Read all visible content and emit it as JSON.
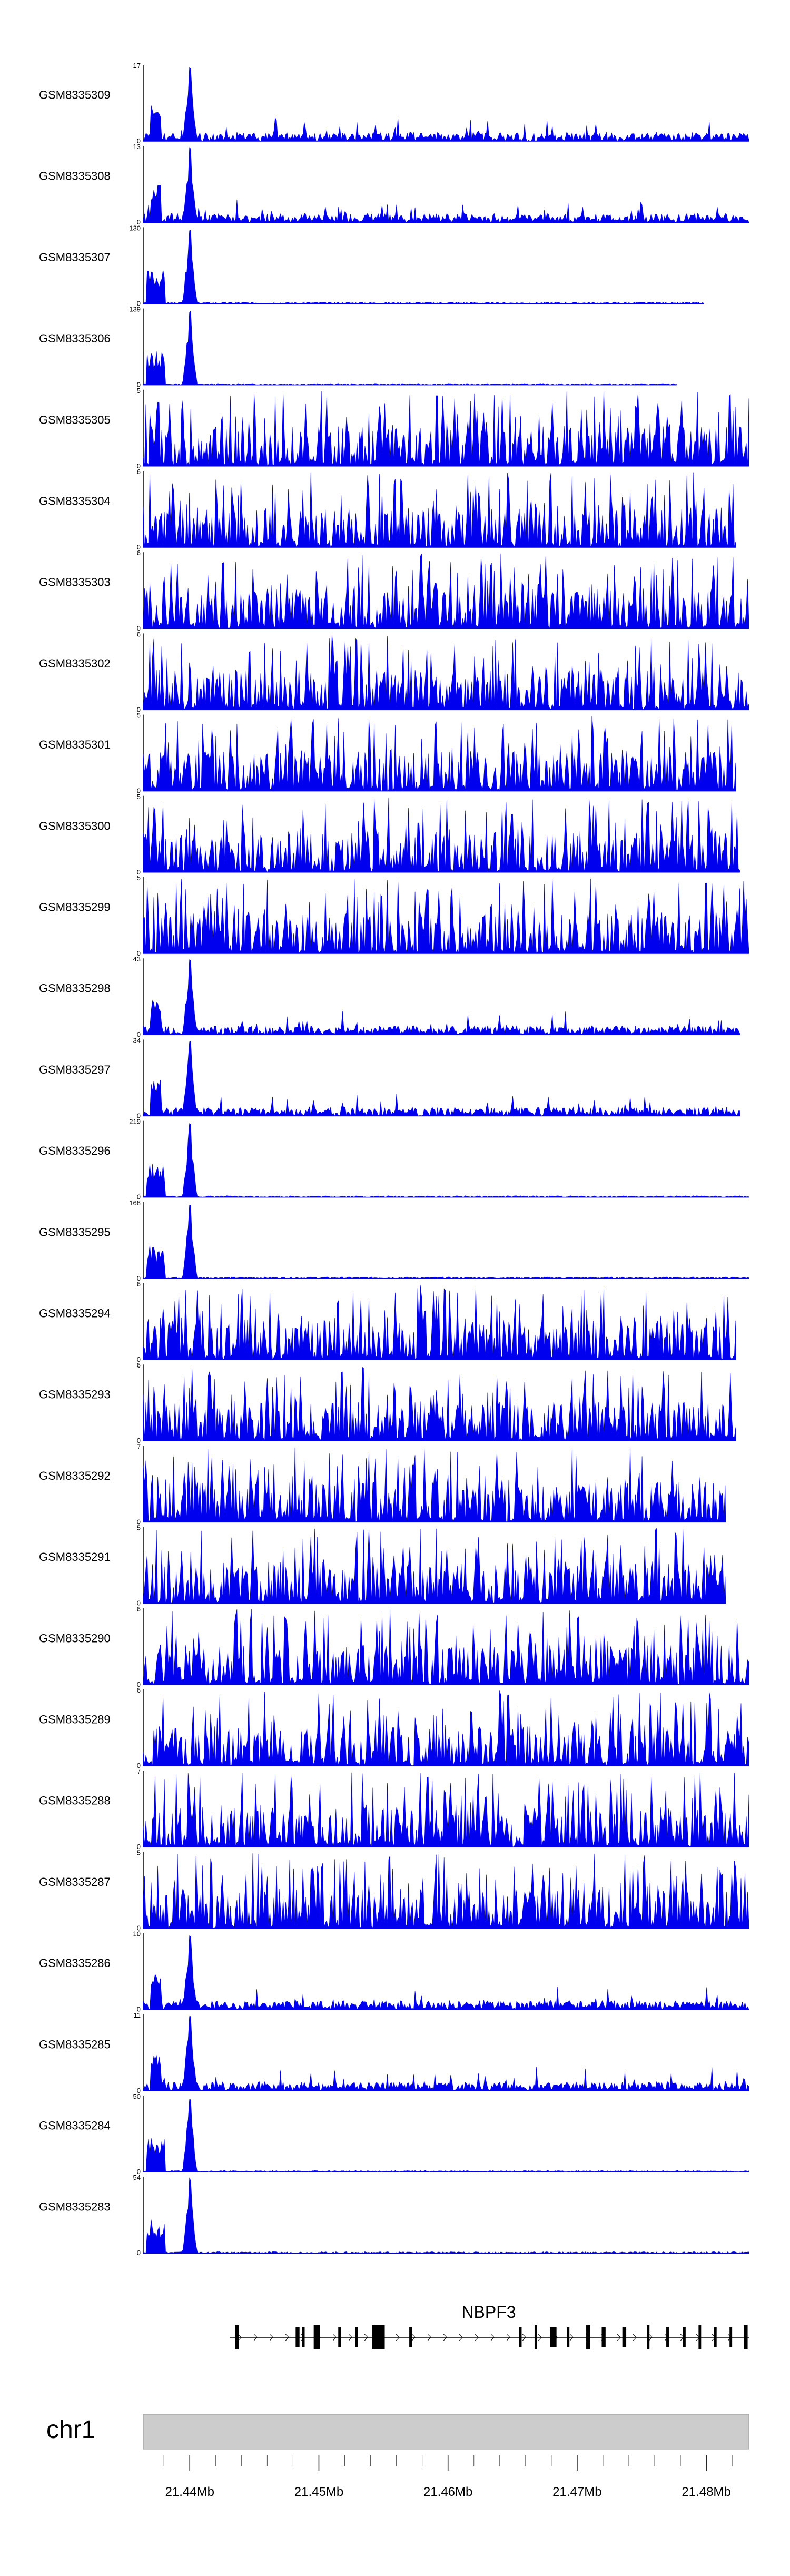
{
  "chart_data": {
    "type": "area",
    "title": "",
    "chromosome": "chr1",
    "xlim_mb": [
      21.4364,
      21.4833
    ],
    "x_axis": {
      "unit": "Mb",
      "tick_labels": [
        "21.44Mb",
        "21.45Mb",
        "21.46Mb",
        "21.47Mb",
        "21.48Mb"
      ],
      "tick_values": [
        21.44,
        21.45,
        21.46,
        21.47,
        21.48
      ],
      "minor_step_mb": 0.002
    },
    "gene": {
      "name": "NBPF3",
      "start_mb": 21.4431,
      "end_mb": 21.4833,
      "strand": "+",
      "exons": [
        [
          21.4435,
          21.4438
        ],
        [
          21.4482,
          21.4485
        ],
        [
          21.4487,
          21.4489
        ],
        [
          21.4496,
          21.4501
        ],
        [
          21.4515,
          21.4517
        ],
        [
          21.4528,
          21.453
        ],
        [
          21.4541,
          21.4551
        ],
        [
          21.457,
          21.4572
        ],
        [
          21.4655,
          21.4657
        ],
        [
          21.4667,
          21.4669
        ],
        [
          21.4679,
          21.4684
        ],
        [
          21.4692,
          21.4694
        ],
        [
          21.4707,
          21.471
        ],
        [
          21.4719,
          21.4722
        ],
        [
          21.4735,
          21.4738
        ],
        [
          21.4754,
          21.4756
        ],
        [
          21.4769,
          21.4771
        ],
        [
          21.4782,
          21.4784
        ],
        [
          21.4794,
          21.4796
        ],
        [
          21.4806,
          21.4808
        ],
        [
          21.4818,
          21.482
        ],
        [
          21.4829,
          21.4832
        ]
      ]
    },
    "series": [
      {
        "name": "GSM8335309",
        "ymax": 17,
        "ylim": [
          0,
          17
        ],
        "pattern": "peaked",
        "peak_mb": 21.44,
        "extent_mb": 21.4833,
        "seed": 9
      },
      {
        "name": "GSM8335308",
        "ymax": 13,
        "ylim": [
          0,
          13
        ],
        "pattern": "peaked",
        "peak_mb": 21.44,
        "extent_mb": 21.4833,
        "seed": 8
      },
      {
        "name": "GSM8335307",
        "ymax": 130,
        "ylim": [
          0,
          130
        ],
        "pattern": "sharp",
        "peak_mb": 21.44,
        "extent_mb": 21.4798,
        "seed": 7
      },
      {
        "name": "GSM8335306",
        "ymax": 139,
        "ylim": [
          0,
          139
        ],
        "pattern": "sharp",
        "peak_mb": 21.44,
        "extent_mb": 21.4777,
        "seed": 6
      },
      {
        "name": "GSM8335305",
        "ymax": 5,
        "ylim": [
          0,
          5
        ],
        "pattern": "broad",
        "peak_mb": null,
        "extent_mb": 21.4833,
        "seed": 5
      },
      {
        "name": "GSM8335304",
        "ymax": 6,
        "ylim": [
          0,
          6
        ],
        "pattern": "broad",
        "peak_mb": null,
        "extent_mb": 21.4823,
        "seed": 4
      },
      {
        "name": "GSM8335303",
        "ymax": 6,
        "ylim": [
          0,
          6
        ],
        "pattern": "broad",
        "peak_mb": null,
        "extent_mb": 21.4833,
        "seed": 3
      },
      {
        "name": "GSM8335302",
        "ymax": 6,
        "ylim": [
          0,
          6
        ],
        "pattern": "broad",
        "peak_mb": null,
        "extent_mb": 21.4833,
        "seed": 2
      },
      {
        "name": "GSM8335301",
        "ymax": 5,
        "ylim": [
          0,
          5
        ],
        "pattern": "broad",
        "peak_mb": null,
        "extent_mb": 21.4823,
        "seed": 1
      },
      {
        "name": "GSM8335300",
        "ymax": 5,
        "ylim": [
          0,
          5
        ],
        "pattern": "broad",
        "peak_mb": null,
        "extent_mb": 21.4826,
        "seed": 30
      },
      {
        "name": "GSM8335299",
        "ymax": 5,
        "ylim": [
          0,
          5
        ],
        "pattern": "broad",
        "peak_mb": null,
        "extent_mb": 21.4833,
        "seed": 29
      },
      {
        "name": "GSM8335298",
        "ymax": 43,
        "ylim": [
          0,
          43
        ],
        "pattern": "peaked",
        "peak_mb": 21.44,
        "extent_mb": 21.4826,
        "seed": 28
      },
      {
        "name": "GSM8335297",
        "ymax": 34,
        "ylim": [
          0,
          34
        ],
        "pattern": "peaked",
        "peak_mb": 21.44,
        "extent_mb": 21.4826,
        "seed": 27
      },
      {
        "name": "GSM8335296",
        "ymax": 219,
        "ylim": [
          0,
          219
        ],
        "pattern": "sharp",
        "peak_mb": 21.44,
        "extent_mb": 21.4833,
        "seed": 26
      },
      {
        "name": "GSM8335295",
        "ymax": 168,
        "ylim": [
          0,
          168
        ],
        "pattern": "sharp",
        "peak_mb": 21.44,
        "extent_mb": 21.4833,
        "seed": 25
      },
      {
        "name": "GSM8335294",
        "ymax": 6,
        "ylim": [
          0,
          6
        ],
        "pattern": "broad",
        "peak_mb": null,
        "extent_mb": 21.4823,
        "seed": 24
      },
      {
        "name": "GSM8335293",
        "ymax": 6,
        "ylim": [
          0,
          6
        ],
        "pattern": "broad",
        "peak_mb": null,
        "extent_mb": 21.4823,
        "seed": 23
      },
      {
        "name": "GSM8335292",
        "ymax": 7,
        "ylim": [
          0,
          7
        ],
        "pattern": "broad",
        "peak_mb": null,
        "extent_mb": 21.4815,
        "seed": 22
      },
      {
        "name": "GSM8335291",
        "ymax": 5,
        "ylim": [
          0,
          5
        ],
        "pattern": "broad",
        "peak_mb": null,
        "extent_mb": 21.4815,
        "seed": 21
      },
      {
        "name": "GSM8335290",
        "ymax": 6,
        "ylim": [
          0,
          6
        ],
        "pattern": "broad",
        "peak_mb": null,
        "extent_mb": 21.4833,
        "seed": 20
      },
      {
        "name": "GSM8335289",
        "ymax": 6,
        "ylim": [
          0,
          6
        ],
        "pattern": "broad",
        "peak_mb": null,
        "extent_mb": 21.4833,
        "seed": 19
      },
      {
        "name": "GSM8335288",
        "ymax": 7,
        "ylim": [
          0,
          7
        ],
        "pattern": "broad",
        "peak_mb": null,
        "extent_mb": 21.4833,
        "seed": 18
      },
      {
        "name": "GSM8335287",
        "ymax": 5,
        "ylim": [
          0,
          5
        ],
        "pattern": "broad",
        "peak_mb": null,
        "extent_mb": 21.4833,
        "seed": 17
      },
      {
        "name": "GSM8335286",
        "ymax": 10,
        "ylim": [
          0,
          10
        ],
        "pattern": "peaked",
        "peak_mb": 21.44,
        "extent_mb": 21.4833,
        "seed": 16
      },
      {
        "name": "GSM8335285",
        "ymax": 11,
        "ylim": [
          0,
          11
        ],
        "pattern": "peaked",
        "peak_mb": 21.44,
        "extent_mb": 21.4833,
        "seed": 15
      },
      {
        "name": "GSM8335284",
        "ymax": 50,
        "ylim": [
          0,
          50
        ],
        "pattern": "sharp",
        "peak_mb": 21.44,
        "extent_mb": 21.4833,
        "seed": 14
      },
      {
        "name": "GSM8335283",
        "ymax": 54,
        "ylim": [
          0,
          54
        ],
        "pattern": "sharp",
        "peak_mb": 21.44,
        "extent_mb": 21.4833,
        "seed": 13
      }
    ],
    "colors": {
      "signal": "#0000ee",
      "axis": "#000000",
      "chromosome_band": "#cccccc",
      "chromosome_border": "#999999"
    }
  }
}
